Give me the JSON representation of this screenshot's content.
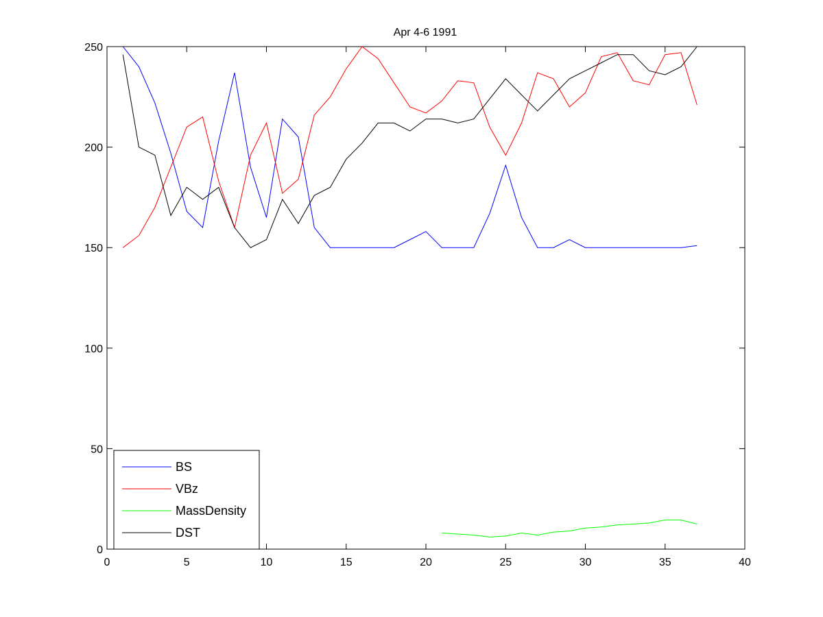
{
  "chart_data": {
    "type": "line",
    "title": "Apr 4-6 1991",
    "xlabel": "",
    "ylabel": "",
    "xlim": [
      0,
      40
    ],
    "ylim": [
      0,
      250
    ],
    "xticks": [
      0,
      5,
      10,
      15,
      20,
      25,
      30,
      35,
      40
    ],
    "yticks": [
      0,
      50,
      100,
      150,
      200,
      250
    ],
    "grid": false,
    "legend_position": "bottom-left",
    "series": [
      {
        "name": "BS",
        "color": "#0000ff",
        "x": [
          1,
          2,
          3,
          4,
          5,
          6,
          7,
          8,
          9,
          10,
          11,
          12,
          13,
          14,
          15,
          16,
          17,
          18,
          19,
          20,
          21,
          22,
          23,
          24,
          25,
          26,
          27,
          28,
          29,
          30,
          31,
          32,
          33,
          34,
          35,
          36,
          37
        ],
        "values": [
          250,
          240,
          222,
          197,
          168,
          160,
          203,
          237,
          190,
          165,
          214,
          205,
          160,
          150,
          150,
          150,
          150,
          150,
          154,
          158,
          150,
          150,
          150,
          167,
          191,
          165,
          150,
          150,
          154,
          150,
          150,
          150,
          150,
          150,
          150,
          150,
          151
        ]
      },
      {
        "name": "VBz",
        "color": "#ff0000",
        "x": [
          1,
          2,
          3,
          4,
          5,
          6,
          7,
          8,
          9,
          10,
          11,
          12,
          13,
          14,
          15,
          16,
          17,
          18,
          19,
          20,
          21,
          22,
          23,
          24,
          25,
          26,
          27,
          28,
          29,
          30,
          31,
          32,
          33,
          34,
          35,
          36,
          37
        ],
        "values": [
          150,
          156,
          170,
          190,
          210,
          215,
          183,
          160,
          196,
          212,
          177,
          184,
          216,
          225,
          239,
          251,
          244,
          232,
          220,
          217,
          223,
          233,
          232,
          210,
          196,
          212,
          237,
          234,
          220,
          227,
          245,
          247,
          233,
          231,
          246,
          247,
          221
        ]
      },
      {
        "name": "MassDensity",
        "color": "#00ff00",
        "x": [
          21,
          22,
          23,
          24,
          25,
          26,
          27,
          28,
          29,
          30,
          31,
          32,
          33,
          34,
          35,
          36,
          37
        ],
        "values": [
          8,
          7.5,
          7,
          6,
          6.5,
          8,
          7,
          8.5,
          9,
          10.5,
          11,
          12,
          12.5,
          13,
          14.5,
          14.5,
          12.5
        ]
      },
      {
        "name": "DST",
        "color": "#000000",
        "x": [
          1,
          2,
          3,
          4,
          5,
          6,
          7,
          8,
          9,
          10,
          11,
          12,
          13,
          14,
          15,
          16,
          17,
          18,
          19,
          20,
          21,
          22,
          23,
          24,
          25,
          26,
          27,
          28,
          29,
          30,
          31,
          32,
          33,
          34,
          35,
          36,
          37
        ],
        "values": [
          246,
          200,
          196,
          166,
          180,
          174,
          180,
          160,
          150,
          154,
          174,
          162,
          176,
          180,
          194,
          202,
          212,
          212,
          208,
          214,
          214,
          212,
          214,
          224,
          234,
          226,
          218,
          226,
          234,
          238,
          242,
          246,
          246,
          238,
          236,
          240,
          250
        ]
      }
    ]
  }
}
